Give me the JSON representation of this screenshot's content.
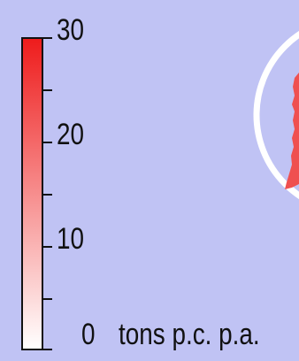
{
  "legend": {
    "ticks": [
      "30",
      "20",
      "10",
      "0"
    ],
    "unit": "tons p.c. p.a.",
    "color_min": "#ffffff",
    "color_max": "#ee1c1c",
    "range": [
      0,
      30
    ]
  },
  "map": {
    "background_color": "#c0c3f4",
    "highlight_circle_color": "#ffffff",
    "region_color": "#ef5050"
  }
}
